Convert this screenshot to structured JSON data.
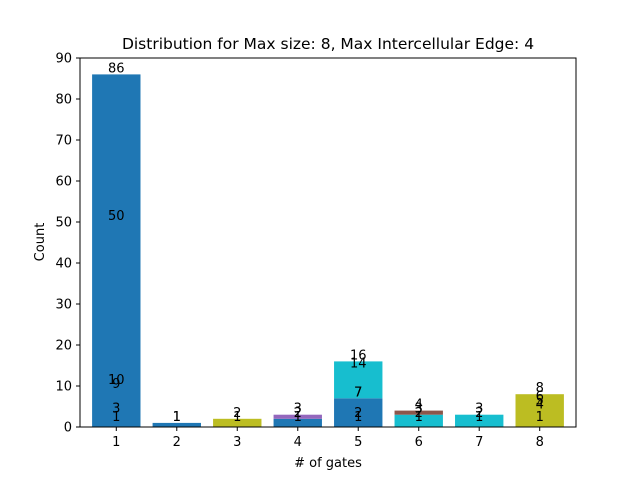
{
  "chart_data": {
    "type": "bar",
    "title": "Distribution for Max size: 8, Max Intercellular Edge: 4",
    "xlabel": "# of gates",
    "ylabel": "Count",
    "ylim": [
      0,
      90
    ],
    "yticks": [
      0,
      10,
      20,
      30,
      40,
      50,
      60,
      70,
      80,
      90
    ],
    "categories": [
      "1",
      "2",
      "3",
      "4",
      "5",
      "6",
      "7",
      "8"
    ],
    "bars": [
      {
        "category": "1",
        "segments": [
          {
            "value": 86,
            "color": "#1f77b4"
          }
        ]
      },
      {
        "category": "2",
        "segments": [
          {
            "value": 1,
            "color": "#1f77b4"
          }
        ]
      },
      {
        "category": "3",
        "segments": [
          {
            "value": 2,
            "color": "#bcbd22"
          }
        ]
      },
      {
        "category": "4",
        "segments": [
          {
            "value": 2,
            "color": "#1f77b4"
          },
          {
            "value": 1,
            "color": "#9467bd"
          }
        ]
      },
      {
        "category": "5",
        "segments": [
          {
            "value": 7,
            "color": "#1f77b4"
          },
          {
            "value": 9,
            "color": "#17becf"
          }
        ]
      },
      {
        "category": "6",
        "segments": [
          {
            "value": 3,
            "color": "#17becf"
          },
          {
            "value": 1,
            "color": "#8c564b"
          }
        ]
      },
      {
        "category": "7",
        "segments": [
          {
            "value": 3,
            "color": "#17becf"
          }
        ]
      },
      {
        "category": "8",
        "segments": [
          {
            "value": 8,
            "color": "#bcbd22"
          }
        ]
      }
    ],
    "annotations": [
      {
        "x": "1",
        "y": 86,
        "text": "86"
      },
      {
        "x": "1",
        "y": 50,
        "text": "50"
      },
      {
        "x": "1",
        "y": 10,
        "text": "10"
      },
      {
        "x": "1",
        "y": 9,
        "text": "9"
      },
      {
        "x": "1",
        "y": 3,
        "text": "3"
      },
      {
        "x": "1",
        "y": 1,
        "text": "1"
      },
      {
        "x": "2",
        "y": 1,
        "text": "1"
      },
      {
        "x": "2",
        "y": 1,
        "text": "1"
      },
      {
        "x": "3",
        "y": 2,
        "text": "2"
      },
      {
        "x": "3",
        "y": 1,
        "text": "1"
      },
      {
        "x": "4",
        "y": 3,
        "text": "3"
      },
      {
        "x": "4",
        "y": 2,
        "text": "2"
      },
      {
        "x": "4",
        "y": 1,
        "text": "1"
      },
      {
        "x": "5",
        "y": 16,
        "text": "16"
      },
      {
        "x": "5",
        "y": 14,
        "text": "14"
      },
      {
        "x": "5",
        "y": 7,
        "text": "7"
      },
      {
        "x": "5",
        "y": 7,
        "text": "7"
      },
      {
        "x": "5",
        "y": 2,
        "text": "2"
      },
      {
        "x": "5",
        "y": 1,
        "text": "1"
      },
      {
        "x": "6",
        "y": 4,
        "text": "4"
      },
      {
        "x": "6",
        "y": 3,
        "text": "3"
      },
      {
        "x": "6",
        "y": 2,
        "text": "2"
      },
      {
        "x": "6",
        "y": 1,
        "text": "1"
      },
      {
        "x": "7",
        "y": 3,
        "text": "3"
      },
      {
        "x": "7",
        "y": 2,
        "text": "2"
      },
      {
        "x": "7",
        "y": 1,
        "text": "1"
      },
      {
        "x": "8",
        "y": 8,
        "text": "8"
      },
      {
        "x": "8",
        "y": 6,
        "text": "6"
      },
      {
        "x": "8",
        "y": 5,
        "text": "5"
      },
      {
        "x": "8",
        "y": 4,
        "text": "4"
      },
      {
        "x": "8",
        "y": 1,
        "text": "1"
      }
    ],
    "grid": false,
    "legend": "none"
  }
}
